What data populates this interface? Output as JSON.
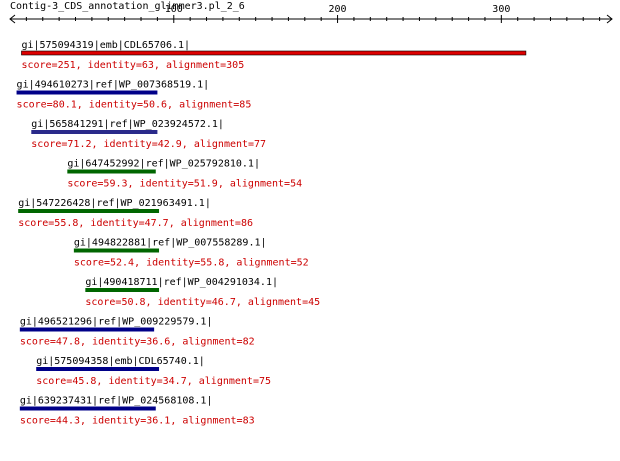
{
  "title": "Contig-3_CDS_annotation_glimmer3.pl_2_6",
  "axis": {
    "min": 0,
    "max": 360,
    "labeled_ticks": [
      100,
      200,
      300
    ],
    "minor_step": 10
  },
  "colors": {
    "axis": "#000000",
    "score_text": "#cc0000"
  },
  "hits": [
    {
      "name": "gi|575094319|emb|CDL65706.1|",
      "score_text": "score=251, identity=63, alignment=305",
      "start": 7,
      "end": 315,
      "color": "#dd0000"
    },
    {
      "name": "gi|494610273|ref|WP_007368519.1|",
      "score_text": "score=80.1, identity=50.6, alignment=85",
      "start": 4,
      "end": 90,
      "color": "#000088"
    },
    {
      "name": "gi|565841291|ref|WP_023924572.1|",
      "score_text": "score=71.2, identity=42.9, alignment=77",
      "start": 13,
      "end": 90,
      "color": "#2a2a8a"
    },
    {
      "name": "gi|647452992|ref|WP_025792810.1|",
      "score_text": "score=59.3, identity=51.9, alignment=54",
      "start": 35,
      "end": 89,
      "color": "#006600"
    },
    {
      "name": "gi|547226428|ref|WP_021963491.1|",
      "score_text": "score=55.8, identity=47.7, alignment=86",
      "start": 5,
      "end": 91,
      "color": "#006600"
    },
    {
      "name": "gi|494822881|ref|WP_007558289.1|",
      "score_text": "score=52.4, identity=55.8, alignment=52",
      "start": 39,
      "end": 91,
      "color": "#006600"
    },
    {
      "name": "gi|490418711|ref|WP_004291034.1|",
      "score_text": "score=50.8, identity=46.7, alignment=45",
      "start": 46,
      "end": 91,
      "color": "#006600"
    },
    {
      "name": "gi|496521296|ref|WP_009229579.1|",
      "score_text": "score=47.8, identity=36.6, alignment=82",
      "start": 6,
      "end": 88,
      "color": "#000088"
    },
    {
      "name": "gi|575094358|emb|CDL65740.1|",
      "score_text": "score=45.8, identity=34.7, alignment=75",
      "start": 16,
      "end": 91,
      "color": "#000088"
    },
    {
      "name": "gi|639237431|ref|WP_024568108.1|",
      "score_text": "score=44.3, identity=36.1, alignment=83",
      "start": 6,
      "end": 89,
      "color": "#000088"
    }
  ]
}
